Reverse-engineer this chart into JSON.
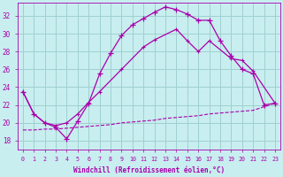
{
  "xlabel": "Windchill (Refroidissement éolien,°C)",
  "background_color": "#c8eef0",
  "grid_color": "#a0d0d0",
  "line_color": "#aa00aa",
  "xlim": [
    -0.5,
    23.5
  ],
  "ylim": [
    17.0,
    33.5
  ],
  "yticks": [
    18,
    20,
    22,
    24,
    26,
    28,
    30,
    32
  ],
  "xticks": [
    0,
    1,
    2,
    3,
    4,
    5,
    6,
    7,
    8,
    9,
    10,
    11,
    12,
    13,
    14,
    15,
    16,
    17,
    18,
    19,
    20,
    21,
    22,
    23
  ],
  "line1_x": [
    0,
    1,
    2,
    3,
    4,
    5,
    6,
    7,
    8,
    9,
    10,
    11,
    12,
    13,
    14,
    15,
    16,
    17,
    18,
    19,
    20,
    21,
    22,
    23
  ],
  "line1_y": [
    23.5,
    21.0,
    20.0,
    19.5,
    18.2,
    20.2,
    22.2,
    25.5,
    27.8,
    29.8,
    31.0,
    31.7,
    32.4,
    33.0,
    32.7,
    32.2,
    31.5,
    31.5,
    29.2,
    27.5,
    26.0,
    25.5,
    22.0,
    22.2
  ],
  "line2_x": [
    0,
    1,
    2,
    3,
    4,
    5,
    6,
    7,
    9,
    11,
    12,
    14,
    15,
    16,
    17,
    19,
    20,
    21,
    23
  ],
  "line2_y": [
    23.5,
    21.0,
    20.0,
    19.7,
    20.0,
    21.0,
    22.3,
    23.5,
    26.0,
    28.5,
    29.3,
    30.5,
    29.2,
    28.0,
    29.2,
    27.2,
    27.0,
    25.8,
    22.2
  ],
  "line3_x": [
    0,
    1,
    2,
    3,
    4,
    5,
    6,
    7,
    8,
    9,
    10,
    11,
    12,
    13,
    14,
    15,
    16,
    17,
    18,
    19,
    20,
    21,
    22,
    23
  ],
  "line3_y": [
    19.2,
    19.2,
    19.3,
    19.3,
    19.4,
    19.5,
    19.6,
    19.7,
    19.8,
    20.0,
    20.1,
    20.2,
    20.3,
    20.5,
    20.6,
    20.7,
    20.8,
    21.0,
    21.1,
    21.2,
    21.3,
    21.4,
    21.8,
    22.2
  ]
}
